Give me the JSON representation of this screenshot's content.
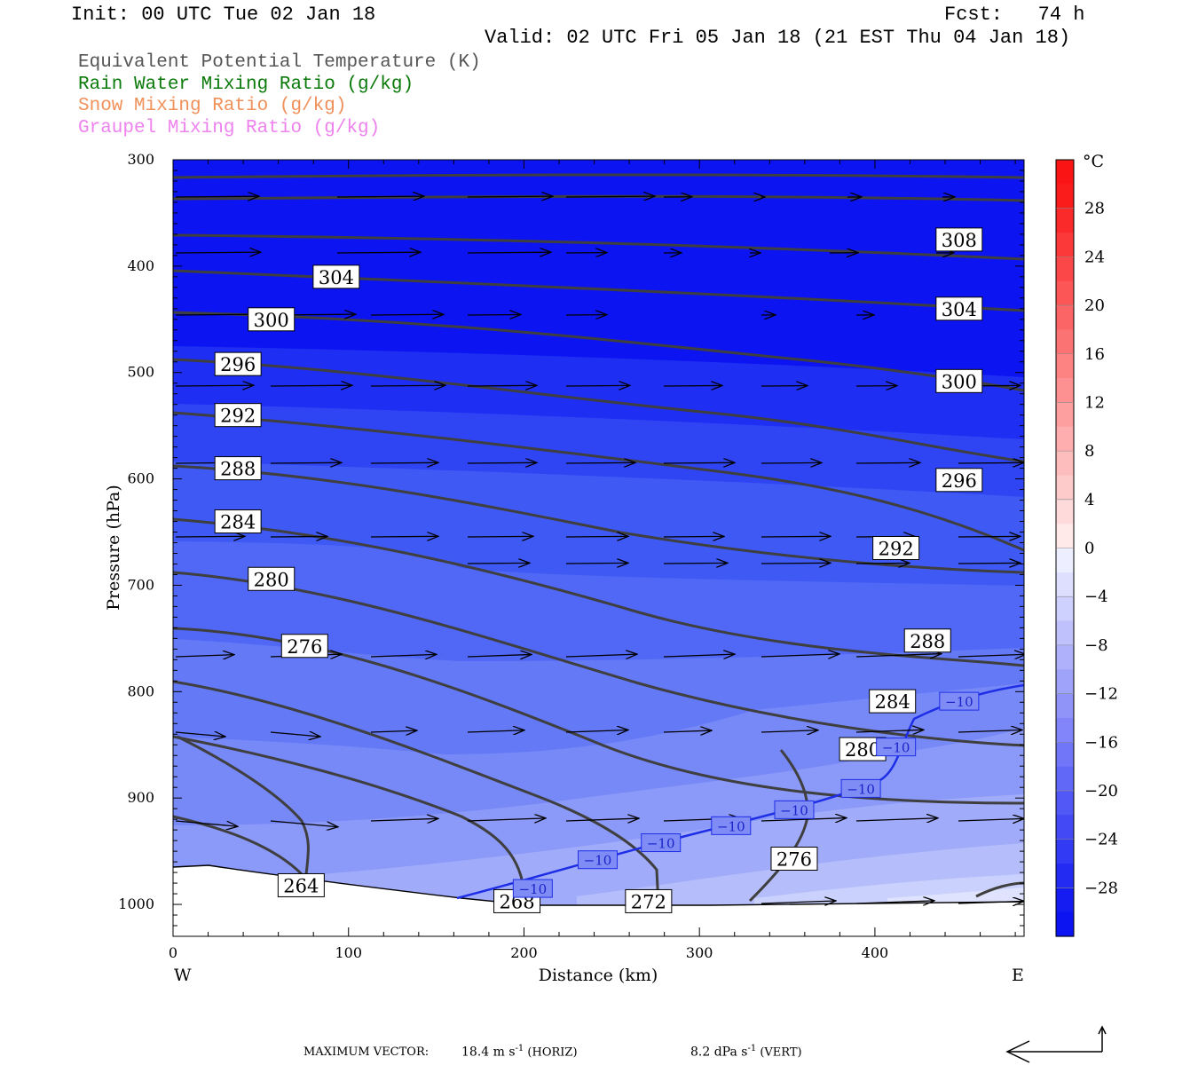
{
  "header": {
    "init": "Init: 00 UTC Tue 02 Jan 18",
    "fcst": "Fcst:   74 h",
    "valid": "Valid: 02 UTC Fri 05 Jan 18 (21 EST Thu 04 Jan 18)"
  },
  "legend": [
    {
      "text": "Equivalent Potential Temperature (K)",
      "color": "#555555"
    },
    {
      "text": "Rain Water Mixing Ratio (g/kg)",
      "color": "#0a7a0a"
    },
    {
      "text": "Snow Mixing Ratio (g/kg)",
      "color": "#f0905a"
    },
    {
      "text": "Graupel Mixing Ratio (g/kg)",
      "color": "#ee82ee"
    }
  ],
  "footer": {
    "max_vector_label": "MAXIMUM VECTOR:",
    "horiz": "18.4 m s",
    "horiz_suffix": " (HORIZ)",
    "vert": "8.2 dPa s",
    "vert_suffix": " (VERT)",
    "exponent": "-1"
  },
  "chart_data": {
    "type": "contour",
    "xlabel": "Distance (km)",
    "ylabel": "Pressure (hPa)",
    "xlim": [
      0,
      485
    ],
    "ylim": [
      1030,
      300
    ],
    "x_ticks": [
      0,
      100,
      200,
      300,
      400
    ],
    "y_ticks": [
      300,
      400,
      500,
      600,
      700,
      800,
      900,
      1000
    ],
    "x_end_labels": {
      "left": "W",
      "right": "E"
    },
    "colorbar": {
      "unit": "°C",
      "labels": [
        "28",
        "24",
        "20",
        "16",
        "12",
        "8",
        "4",
        "0",
        "−4",
        "−8",
        "−12",
        "−16",
        "−20",
        "−24",
        "−28"
      ],
      "range": [
        -32,
        32
      ],
      "step": 2
    },
    "theta_e_labels": [
      {
        "text": "308",
        "x": 448,
        "p": 375
      },
      {
        "text": "304",
        "x": 93,
        "p": 410
      },
      {
        "text": "304",
        "x": 448,
        "p": 440
      },
      {
        "text": "300",
        "x": 56,
        "p": 450
      },
      {
        "text": "300",
        "x": 448,
        "p": 508
      },
      {
        "text": "296",
        "x": 37,
        "p": 492
      },
      {
        "text": "296",
        "x": 448,
        "p": 601
      },
      {
        "text": "292",
        "x": 37,
        "p": 540
      },
      {
        "text": "292",
        "x": 412,
        "p": 665
      },
      {
        "text": "288",
        "x": 37,
        "p": 590
      },
      {
        "text": "288",
        "x": 430,
        "p": 752
      },
      {
        "text": "284",
        "x": 37,
        "p": 640
      },
      {
        "text": "284",
        "x": 410,
        "p": 809
      },
      {
        "text": "280",
        "x": 56,
        "p": 694
      },
      {
        "text": "280",
        "x": 393,
        "p": 854
      },
      {
        "text": "276",
        "x": 75,
        "p": 757
      },
      {
        "text": "276",
        "x": 354,
        "p": 957
      },
      {
        "text": "264",
        "x": 73,
        "p": 982
      },
      {
        "text": "268",
        "x": 196,
        "p": 997
      },
      {
        "text": "272",
        "x": 271,
        "p": 997
      }
    ],
    "temp_labels": [
      {
        "text": "−10",
        "x": 205,
        "p": 985
      },
      {
        "text": "−10",
        "x": 242,
        "p": 958
      },
      {
        "text": "−10",
        "x": 278,
        "p": 942
      },
      {
        "text": "−10",
        "x": 318,
        "p": 926
      },
      {
        "text": "−10",
        "x": 354,
        "p": 911
      },
      {
        "text": "−10",
        "x": 392,
        "p": 891
      },
      {
        "text": "−10",
        "x": 412,
        "p": 852
      },
      {
        "text": "−10",
        "x": 448,
        "p": 809
      }
    ]
  }
}
